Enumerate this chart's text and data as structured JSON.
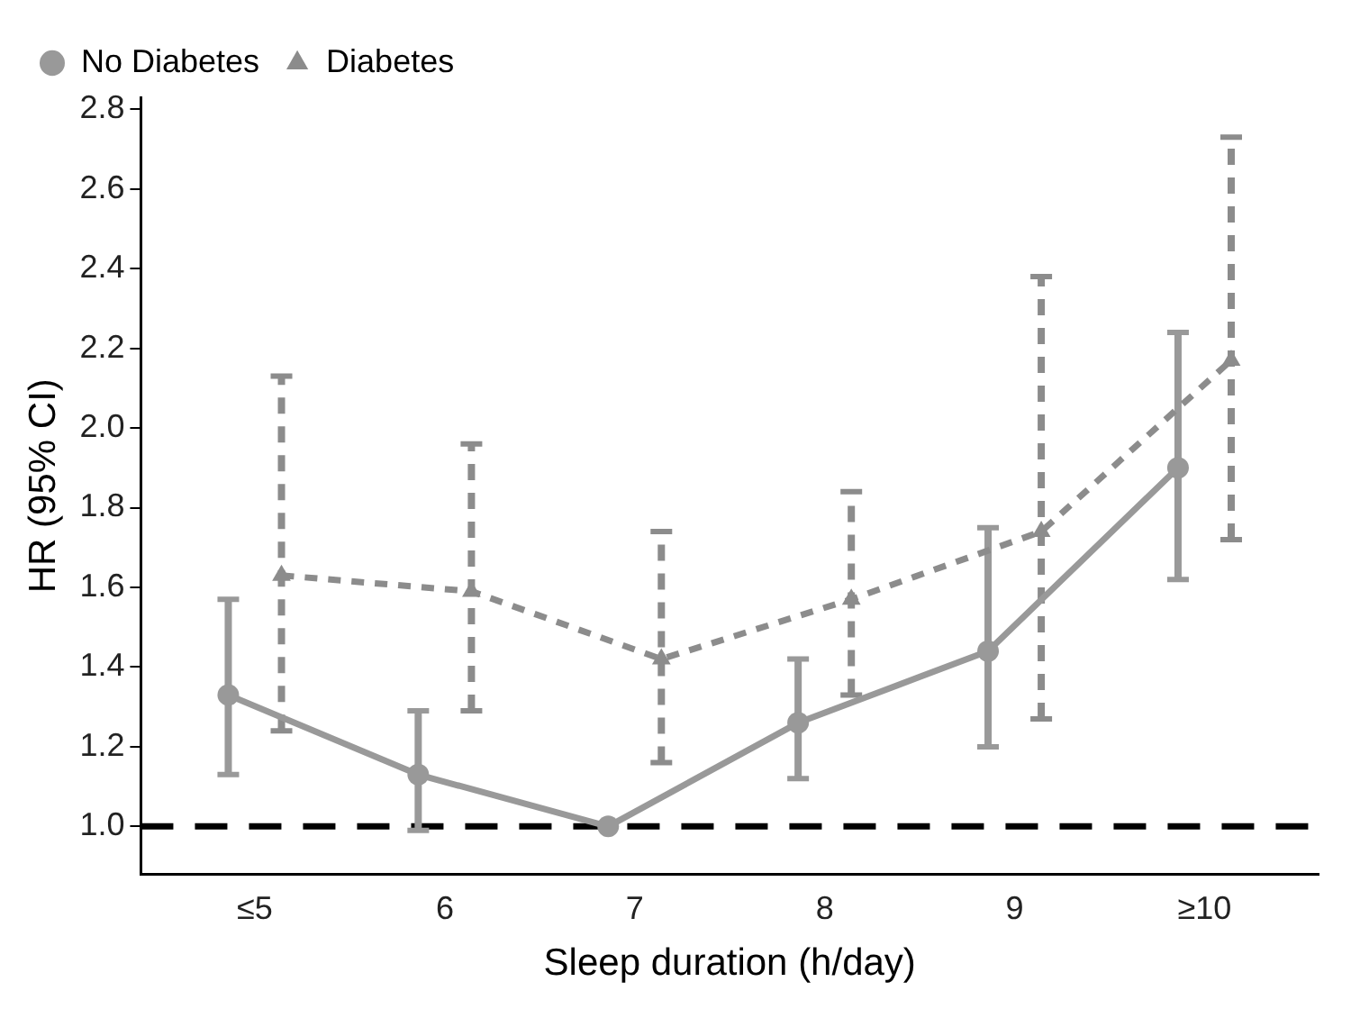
{
  "chart_data": {
    "type": "line",
    "xlabel": "Sleep duration (h/day)",
    "ylabel": "HR (95% CI)",
    "categories": [
      "≤5",
      "6",
      "7",
      "8",
      "9",
      "≥10"
    ],
    "series": [
      {
        "name": "No Diabetes",
        "color": "#999999",
        "marker": "circle",
        "line_style": "solid",
        "values": [
          1.33,
          1.13,
          1.0,
          1.26,
          1.44,
          1.9
        ],
        "errors": [
          [
            1.13,
            1.57
          ],
          [
            0.99,
            1.29
          ],
          null,
          [
            1.12,
            1.42
          ],
          [
            1.2,
            1.75
          ],
          [
            1.62,
            2.24
          ]
        ]
      },
      {
        "name": "Diabetes",
        "color": "#8c8c8c",
        "marker": "triangle",
        "line_style": "dashed",
        "values": [
          1.63,
          1.59,
          1.42,
          1.57,
          1.74,
          2.17
        ],
        "errors": [
          [
            1.24,
            2.13
          ],
          [
            1.29,
            1.96
          ],
          [
            1.16,
            1.74
          ],
          [
            1.33,
            1.84
          ],
          [
            1.27,
            2.38
          ],
          [
            1.72,
            2.73
          ]
        ]
      }
    ],
    "ylim": [
      0.88,
      2.83
    ],
    "yticks": [
      {
        "value": 1,
        "label": "1.0"
      },
      {
        "value": 1.2,
        "label": "1.2"
      },
      {
        "value": 1.4,
        "label": "1.4"
      },
      {
        "value": 1.6,
        "label": "1.6"
      },
      {
        "value": 1.8,
        "label": "1.8"
      },
      {
        "value": 2,
        "label": "2.0"
      },
      {
        "value": 2.2,
        "label": "2.2"
      },
      {
        "value": 2.4,
        "label": "2.4"
      },
      {
        "value": 2.6,
        "label": "2.6"
      },
      {
        "value": 2.8,
        "label": "2.8"
      }
    ],
    "ref_lines": [
      {
        "axis": "y",
        "value": 1,
        "color": "#000000",
        "line_style": "dashed"
      }
    ],
    "grid": false,
    "legend": "top left"
  }
}
